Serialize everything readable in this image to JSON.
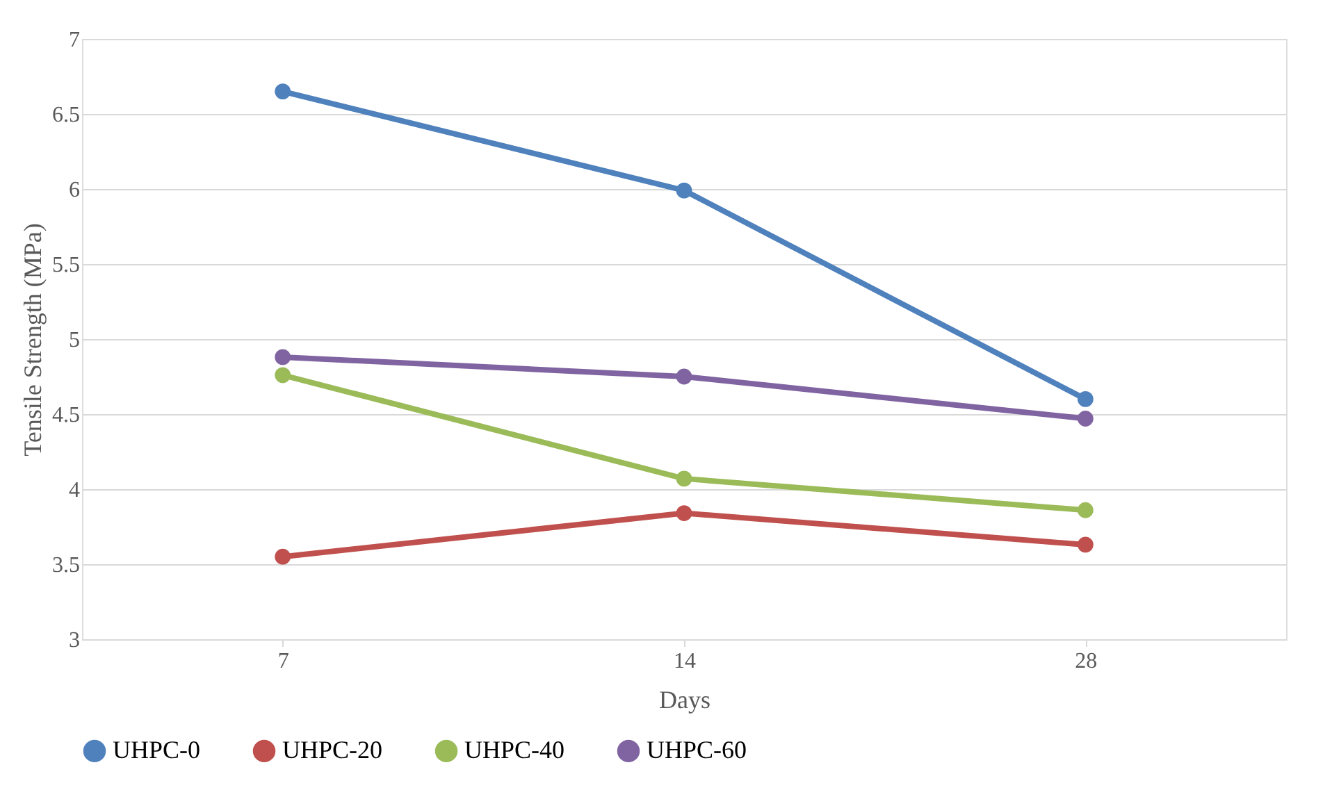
{
  "chart_data": {
    "type": "line",
    "xlabel": "Days",
    "ylabel": "Tensile Strength (MPa)",
    "categories": [
      "7",
      "14",
      "28"
    ],
    "series": [
      {
        "name": "UHPC-0",
        "color": "#4f81bd",
        "values": [
          6.65,
          5.99,
          4.6
        ]
      },
      {
        "name": "UHPC-20",
        "color": "#c0504d",
        "values": [
          3.55,
          3.84,
          3.63
        ]
      },
      {
        "name": "UHPC-40",
        "color": "#9bbb59",
        "values": [
          4.76,
          4.07,
          3.86
        ]
      },
      {
        "name": "UHPC-60",
        "color": "#8064a2",
        "values": [
          4.88,
          4.75,
          4.47
        ]
      }
    ],
    "ylim": [
      3,
      7
    ],
    "yticks": [
      3,
      3.5,
      4,
      4.5,
      5,
      5.5,
      6,
      6.5,
      7
    ],
    "grid": "y",
    "legend": "bottom",
    "marker": "circle",
    "line_style": "solid"
  }
}
